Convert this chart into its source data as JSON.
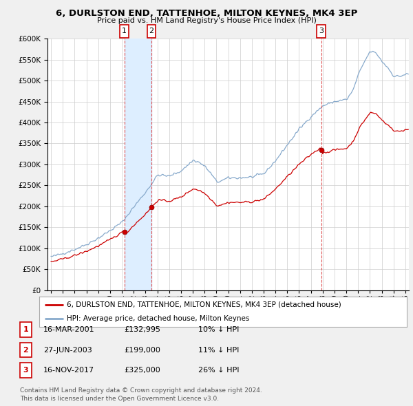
{
  "title": "6, DURLSTON END, TATTENHOE, MILTON KEYNES, MK4 3EP",
  "subtitle": "Price paid vs. HM Land Registry's House Price Index (HPI)",
  "legend_line1": "6, DURLSTON END, TATTENHOE, MILTON KEYNES, MK4 3EP (detached house)",
  "legend_line2": "HPI: Average price, detached house, Milton Keynes",
  "footer1": "Contains HM Land Registry data © Crown copyright and database right 2024.",
  "footer2": "This data is licensed under the Open Government Licence v3.0.",
  "transactions": [
    {
      "num": 1,
      "date": "16-MAR-2001",
      "price": "£132,995",
      "year": 2001.21,
      "pct": "10% ↓ HPI"
    },
    {
      "num": 2,
      "date": "27-JUN-2003",
      "price": "£199,000",
      "year": 2003.49,
      "pct": "11% ↓ HPI"
    },
    {
      "num": 3,
      "date": "16-NOV-2017",
      "price": "£325,000",
      "year": 2017.88,
      "pct": "26% ↓ HPI"
    }
  ],
  "red_line_color": "#cc0000",
  "blue_line_color": "#88aacc",
  "shade_color": "#ddeeff",
  "vline_color": "#dd4444",
  "bg_color": "#f0f0f0",
  "plot_bg": "#ffffff",
  "ylim_max": 600000,
  "xlim_start": 1994.7,
  "xlim_end": 2025.3
}
